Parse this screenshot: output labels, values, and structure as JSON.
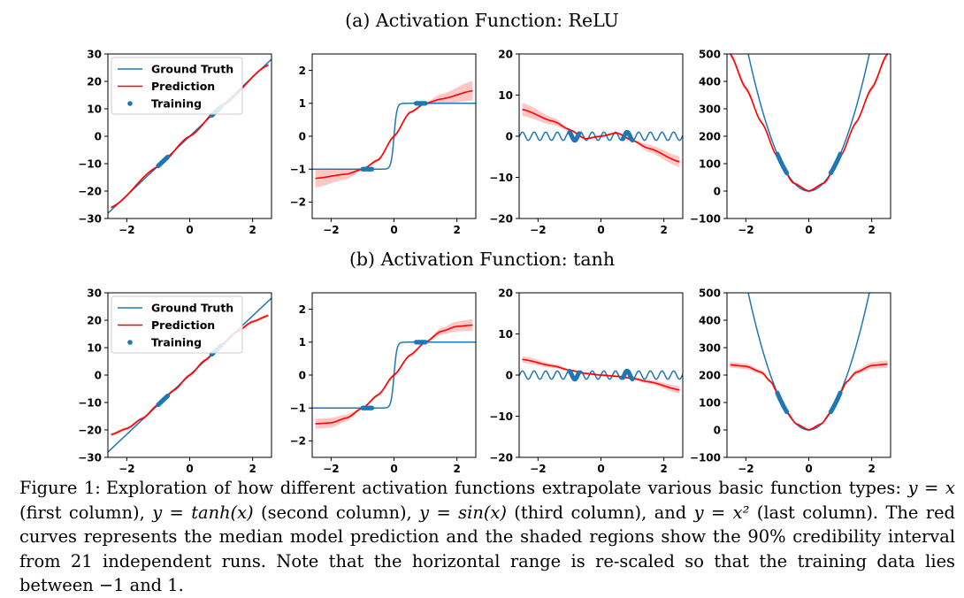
{
  "figure": {
    "row_titles": [
      "(a) Activation Function: ReLU",
      "(b) Activation Function: tanh"
    ],
    "legend": {
      "ground_truth": "Ground Truth",
      "prediction": "Prediction",
      "training": "Training"
    },
    "colors": {
      "ground_truth": "#1f77b4",
      "prediction": "#ff0000",
      "band": "#ffb3b3",
      "training": "#1f77b4"
    }
  },
  "chart_data": [
    {
      "type": "line",
      "row": 0,
      "col": 0,
      "ground_truth": "y = x",
      "xlim": [
        -2.6,
        2.6
      ],
      "ylim": [
        -30,
        30
      ],
      "xticks": [
        "−2",
        "0",
        "2"
      ],
      "yticks": [
        "30",
        "20",
        "10",
        "0",
        "−10",
        "−20",
        "−30"
      ],
      "x_tick_values": [
        -2,
        0,
        2
      ],
      "y_tick_values": [
        30,
        20,
        10,
        0,
        -10,
        -20,
        -30
      ],
      "training_x": [
        [
          -1,
          -0.7
        ],
        [
          0.7,
          1
        ]
      ],
      "prediction": {
        "x": [
          -2.5,
          -1,
          0,
          1,
          2.5
        ],
        "y": [
          -26,
          -11,
          0,
          11,
          26
        ]
      },
      "band_halfwidth": 0.5,
      "legend": "upper-left"
    },
    {
      "type": "line",
      "row": 0,
      "col": 1,
      "ground_truth": "y = tanh(x)",
      "xlim": [
        -2.6,
        2.6
      ],
      "ylim": [
        -2.5,
        2.5
      ],
      "xticks": [
        "−2",
        "0",
        "2"
      ],
      "yticks": [
        "2",
        "1",
        "0",
        "−1",
        "−2"
      ],
      "x_tick_values": [
        -2,
        0,
        2
      ],
      "y_tick_values": [
        2,
        1,
        0,
        -1,
        -2
      ],
      "training_x": [
        [
          -1,
          -0.7
        ],
        [
          0.7,
          1
        ]
      ],
      "prediction": {
        "x": [
          -2.5,
          -1.5,
          -1,
          -0.5,
          0,
          0.5,
          1,
          1.5,
          2.5
        ],
        "y": [
          -1.28,
          -1.15,
          -1.0,
          -0.72,
          0,
          0.72,
          1.0,
          1.13,
          1.38
        ]
      },
      "band_halfwidth": [
        0.28,
        0.15,
        0.03,
        0.05,
        0.05,
        0.05,
        0.03,
        0.15,
        0.3
      ]
    },
    {
      "type": "line",
      "row": 0,
      "col": 2,
      "ground_truth": "y = sin(x)",
      "xlim": [
        -2.6,
        2.6
      ],
      "ylim": [
        -20,
        20
      ],
      "xticks": [
        "−2",
        "0",
        "2"
      ],
      "yticks": [
        "20",
        "10",
        "0",
        "−10",
        "−20"
      ],
      "x_tick_values": [
        -2,
        0,
        2
      ],
      "y_tick_values": [
        20,
        10,
        0,
        -10,
        -20
      ],
      "training_x": [
        [
          -1,
          -0.7
        ],
        [
          0.7,
          1
        ]
      ],
      "prediction": {
        "x": [
          -2.5,
          -1.5,
          -1,
          -0.5,
          0,
          0.5,
          1,
          1.5,
          2.5
        ],
        "y": [
          6.5,
          3.6,
          1.6,
          -0.6,
          0,
          0.8,
          -1.0,
          -2.9,
          -6.2
        ]
      },
      "band_halfwidth": [
        1.6,
        0.9,
        0.3,
        0.3,
        0.3,
        0.3,
        0.3,
        0.9,
        1.3
      ]
    },
    {
      "type": "line",
      "row": 0,
      "col": 3,
      "ground_truth": "y = x^2",
      "xlim": [
        -2.6,
        2.6
      ],
      "ylim": [
        -100,
        500
      ],
      "xticks": [
        "−2",
        "0",
        "2"
      ],
      "yticks": [
        "500",
        "400",
        "300",
        "200",
        "100",
        "0",
        "−100"
      ],
      "x_tick_values": [
        -2,
        0,
        2
      ],
      "y_tick_values": [
        500,
        400,
        300,
        200,
        100,
        0,
        -100
      ],
      "training_x": [
        [
          -1,
          -0.7
        ],
        [
          0.7,
          1
        ]
      ],
      "prediction": {
        "x": [
          -2.5,
          -2,
          -1.5,
          -1,
          -0.5,
          0,
          0.5,
          1,
          1.5,
          2,
          2.5
        ],
        "y": [
          500,
          375,
          250,
          125,
          30,
          0,
          30,
          125,
          250,
          375,
          500
        ]
      },
      "band_halfwidth": [
        12,
        10,
        6,
        3,
        4,
        5,
        4,
        3,
        6,
        10,
        12
      ]
    },
    {
      "type": "line",
      "row": 1,
      "col": 0,
      "ground_truth": "y = x",
      "xlim": [
        -2.6,
        2.6
      ],
      "ylim": [
        -30,
        30
      ],
      "xticks": [
        "−2",
        "0",
        "2"
      ],
      "yticks": [
        "30",
        "20",
        "10",
        "0",
        "−10",
        "−20",
        "−30"
      ],
      "x_tick_values": [
        -2,
        0,
        2
      ],
      "y_tick_values": [
        30,
        20,
        10,
        0,
        -10,
        -20,
        -30
      ],
      "training_x": [
        [
          -1,
          -0.7
        ],
        [
          0.7,
          1
        ]
      ],
      "prediction": {
        "x": [
          -2.5,
          -2,
          -1.5,
          -1,
          -0.5,
          0,
          0.5,
          1,
          1.5,
          2,
          2.5
        ],
        "y": [
          -21.7,
          -19.5,
          -15.8,
          -10.8,
          -5.5,
          0,
          5.5,
          10.8,
          15.8,
          19.5,
          21.7
        ]
      },
      "band_halfwidth": 0.6,
      "legend": "upper-left"
    },
    {
      "type": "line",
      "row": 1,
      "col": 1,
      "ground_truth": "y = tanh(x)",
      "xlim": [
        -2.6,
        2.6
      ],
      "ylim": [
        -2.5,
        2.5
      ],
      "xticks": [
        "−2",
        "0",
        "2"
      ],
      "yticks": [
        "2",
        "1",
        "0",
        "−1",
        "−2"
      ],
      "x_tick_values": [
        -2,
        0,
        2
      ],
      "y_tick_values": [
        2,
        1,
        0,
        -1,
        -2
      ],
      "training_x": [
        [
          -1,
          -0.7
        ],
        [
          0.7,
          1
        ]
      ],
      "prediction": {
        "x": [
          -2.5,
          -2,
          -1.5,
          -1,
          -0.5,
          0,
          0.5,
          1,
          1.5,
          2,
          2.5
        ],
        "y": [
          -1.48,
          -1.45,
          -1.3,
          -1.0,
          -0.6,
          0,
          0.6,
          1.0,
          1.33,
          1.48,
          1.52
        ]
      },
      "band_halfwidth": [
        0.15,
        0.15,
        0.1,
        0.03,
        0.05,
        0.05,
        0.05,
        0.03,
        0.1,
        0.15,
        0.18
      ]
    },
    {
      "type": "line",
      "row": 1,
      "col": 2,
      "ground_truth": "y = sin(x)",
      "xlim": [
        -2.6,
        2.6
      ],
      "ylim": [
        -20,
        20
      ],
      "xticks": [
        "−2",
        "0",
        "2"
      ],
      "yticks": [
        "20",
        "10",
        "0",
        "−10",
        "−20"
      ],
      "x_tick_values": [
        -2,
        0,
        2
      ],
      "y_tick_values": [
        20,
        10,
        0,
        -10,
        -20
      ],
      "training_x": [
        [
          -1,
          -0.7
        ],
        [
          0.7,
          1
        ]
      ],
      "prediction": {
        "x": [
          -2.5,
          -1.5,
          -1,
          -0.5,
          0,
          0.5,
          1,
          1.5,
          2.5
        ],
        "y": [
          3.8,
          2.2,
          1.2,
          0.4,
          0,
          -0.3,
          -0.8,
          -1.6,
          -3.6
        ]
      },
      "band_halfwidth": [
        0.8,
        0.5,
        0.3,
        0.3,
        0.3,
        0.3,
        0.3,
        0.5,
        0.9
      ]
    },
    {
      "type": "line",
      "row": 1,
      "col": 3,
      "ground_truth": "y = x^2",
      "xlim": [
        -2.6,
        2.6
      ],
      "ylim": [
        -100,
        500
      ],
      "xticks": [
        "−2",
        "0",
        "2"
      ],
      "yticks": [
        "500",
        "400",
        "300",
        "200",
        "100",
        "0",
        "−100"
      ],
      "x_tick_values": [
        -2,
        0,
        2
      ],
      "y_tick_values": [
        500,
        400,
        300,
        200,
        100,
        0,
        -100
      ],
      "training_x": [
        [
          -1,
          -0.7
        ],
        [
          0.7,
          1
        ]
      ],
      "prediction": {
        "x": [
          -2.5,
          -2,
          -1.5,
          -1.2,
          -1,
          -0.7,
          -0.4,
          0,
          0.4,
          0.7,
          1,
          1.2,
          1.5,
          2,
          2.5
        ],
        "y": [
          237,
          232,
          210,
          175,
          135,
          65,
          22,
          0,
          22,
          65,
          135,
          175,
          210,
          235,
          240
        ]
      },
      "band_halfwidth": [
        10,
        10,
        8,
        5,
        3,
        3,
        4,
        5,
        4,
        3,
        3,
        5,
        8,
        12,
        14
      ]
    }
  ],
  "caption": {
    "label": "Figure 1:",
    "line1": "Exploration of how different activation functions extrapolate various basic function types: ",
    "eq1": "y = x",
    "line2a": "(first column), ",
    "eq2": "y = tanh(x)",
    "line2b": " (second column), ",
    "eq3": "y = sin(x)",
    "line2c": " (third column), and ",
    "eq4": "y = x²",
    "line2d": " (last column). The red curves represents the median model prediction and the shaded regions show the 90% credibility interval from 21 independent runs. Note that the horizontal range is re-scaled so that the training data lies between −1 and 1."
  }
}
